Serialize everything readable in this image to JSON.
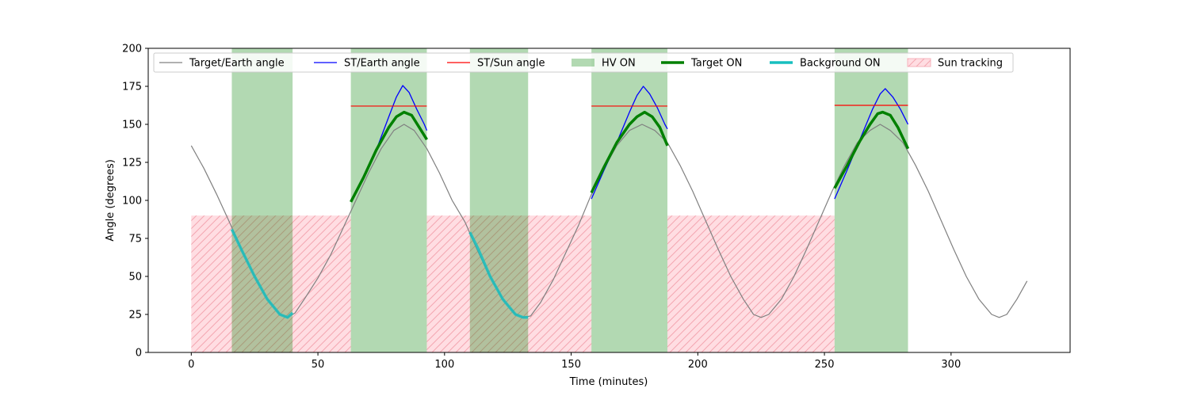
{
  "chart_data": {
    "type": "line",
    "xlabel": "Time (minutes)",
    "ylabel": "Angle (degrees)",
    "xlim": [
      -17,
      347
    ],
    "ylim": [
      0,
      200
    ],
    "x_ticks": [
      0,
      50,
      100,
      150,
      200,
      250,
      300
    ],
    "y_ticks": [
      0,
      25,
      50,
      75,
      100,
      125,
      150,
      175,
      200
    ],
    "grid": false,
    "legend_position": "top",
    "legend": [
      {
        "label": "Target/Earth angle",
        "kind": "line",
        "color": "#808080"
      },
      {
        "label": "ST/Earth angle",
        "kind": "line",
        "color": "#0000ff"
      },
      {
        "label": "ST/Sun angle",
        "kind": "line",
        "color": "#ff0000"
      },
      {
        "label": "HV ON",
        "kind": "patch",
        "color": "#b3d9b3"
      },
      {
        "label": "Target ON",
        "kind": "thickline",
        "color": "#008000"
      },
      {
        "label": "Background ON",
        "kind": "thickline",
        "color": "#17bfbf"
      },
      {
        "label": "Sun tracking",
        "kind": "hatch",
        "color": "#ffdde2"
      }
    ],
    "target_earth": {
      "color": "#808080",
      "points": [
        [
          0,
          136
        ],
        [
          5,
          121
        ],
        [
          10,
          104
        ],
        [
          15,
          86
        ],
        [
          20,
          67
        ],
        [
          25,
          50
        ],
        [
          30,
          35
        ],
        [
          35,
          25
        ],
        [
          38,
          23
        ],
        [
          41,
          26
        ],
        [
          45,
          36
        ],
        [
          50,
          49
        ],
        [
          55,
          64
        ],
        [
          60,
          82
        ],
        [
          65,
          100
        ],
        [
          70,
          118
        ],
        [
          75,
          134
        ],
        [
          80,
          146
        ],
        [
          84,
          150
        ],
        [
          88,
          146
        ],
        [
          93,
          134
        ],
        [
          98,
          118
        ],
        [
          103,
          100
        ],
        [
          108,
          86
        ],
        [
          113,
          67
        ],
        [
          118,
          50
        ],
        [
          123,
          35
        ],
        [
          128,
          25
        ],
        [
          131,
          23
        ],
        [
          134,
          24
        ],
        [
          138,
          33
        ],
        [
          143,
          48
        ],
        [
          148,
          66
        ],
        [
          153,
          84
        ],
        [
          158,
          104
        ],
        [
          163,
          121
        ],
        [
          168,
          136
        ],
        [
          173,
          146
        ],
        [
          178,
          150
        ],
        [
          183,
          146
        ],
        [
          188,
          138
        ],
        [
          193,
          123
        ],
        [
          198,
          106
        ],
        [
          203,
          87
        ],
        [
          208,
          68
        ],
        [
          213,
          50
        ],
        [
          218,
          35
        ],
        [
          222,
          25
        ],
        [
          225,
          23
        ],
        [
          228,
          25
        ],
        [
          233,
          35
        ],
        [
          238,
          50
        ],
        [
          243,
          68
        ],
        [
          248,
          87
        ],
        [
          253,
          106
        ],
        [
          258,
          123
        ],
        [
          263,
          138
        ],
        [
          268,
          146
        ],
        [
          272,
          150
        ],
        [
          276,
          146
        ],
        [
          281,
          138
        ],
        [
          286,
          123
        ],
        [
          291,
          106
        ],
        [
          296,
          87
        ],
        [
          301,
          68
        ],
        [
          306,
          50
        ],
        [
          311,
          35
        ],
        [
          316,
          25
        ],
        [
          319,
          23
        ],
        [
          322,
          25
        ],
        [
          326,
          35
        ],
        [
          330,
          47
        ]
      ]
    },
    "hv_on": [
      [
        16,
        40
      ],
      [
        63,
        93
      ],
      [
        110,
        133
      ],
      [
        158,
        188
      ],
      [
        254,
        283
      ]
    ],
    "sun_tracking": {
      "level": 90,
      "ranges": [
        [
          0,
          63
        ],
        [
          93,
          158
        ],
        [
          188,
          254
        ]
      ]
    },
    "st_earth": [
      {
        "points": [
          [
            63,
            100
          ],
          [
            68,
            115
          ],
          [
            73,
            133
          ],
          [
            78,
            155
          ],
          [
            81,
            168
          ],
          [
            83.5,
            175.5
          ],
          [
            86,
            171
          ],
          [
            89,
            160
          ],
          [
            92,
            150
          ],
          [
            93,
            146
          ]
        ]
      },
      {
        "points": [
          [
            158,
            101
          ],
          [
            163,
            120
          ],
          [
            168,
            138
          ],
          [
            173,
            158
          ],
          [
            176,
            169
          ],
          [
            178.5,
            175
          ],
          [
            181,
            170
          ],
          [
            184,
            161
          ],
          [
            187,
            150
          ],
          [
            188,
            147
          ]
        ]
      },
      {
        "points": [
          [
            254,
            101
          ],
          [
            259,
            120
          ],
          [
            264,
            140
          ],
          [
            269,
            160
          ],
          [
            272,
            170
          ],
          [
            274,
            173.5
          ],
          [
            277,
            168
          ],
          [
            280,
            160
          ],
          [
            283,
            150
          ]
        ]
      }
    ],
    "st_sun": [
      {
        "from": 63,
        "to": 93,
        "value": 162
      },
      {
        "from": 158,
        "to": 188,
        "value": 162
      },
      {
        "from": 254,
        "to": 283,
        "value": 162.5
      }
    ],
    "target_on": [
      {
        "points": [
          [
            63,
            99
          ],
          [
            68,
            115
          ],
          [
            73,
            133
          ],
          [
            78,
            148
          ],
          [
            81,
            155
          ],
          [
            84,
            158
          ],
          [
            87,
            156
          ],
          [
            90,
            148
          ],
          [
            93,
            140
          ]
        ]
      },
      {
        "points": [
          [
            158,
            105
          ],
          [
            163,
            122
          ],
          [
            168,
            138
          ],
          [
            173,
            150
          ],
          [
            176,
            155
          ],
          [
            179,
            158
          ],
          [
            182,
            155
          ],
          [
            185,
            148
          ],
          [
            188,
            136
          ]
        ]
      },
      {
        "points": [
          [
            254,
            108
          ],
          [
            259,
            123
          ],
          [
            264,
            139
          ],
          [
            268,
            150
          ],
          [
            271,
            157
          ],
          [
            273,
            158
          ],
          [
            276,
            156
          ],
          [
            279,
            148
          ],
          [
            283,
            134
          ]
        ]
      }
    ],
    "background_on": [
      {
        "points": [
          [
            16,
            81
          ],
          [
            20,
            67
          ],
          [
            25,
            50
          ],
          [
            30,
            35
          ],
          [
            35,
            25
          ],
          [
            38,
            23
          ],
          [
            40,
            26
          ]
        ]
      },
      {
        "points": [
          [
            110,
            79
          ],
          [
            113,
            69
          ],
          [
            118,
            50
          ],
          [
            123,
            35
          ],
          [
            128,
            25
          ],
          [
            131,
            23
          ],
          [
            133,
            23
          ]
        ]
      }
    ]
  }
}
